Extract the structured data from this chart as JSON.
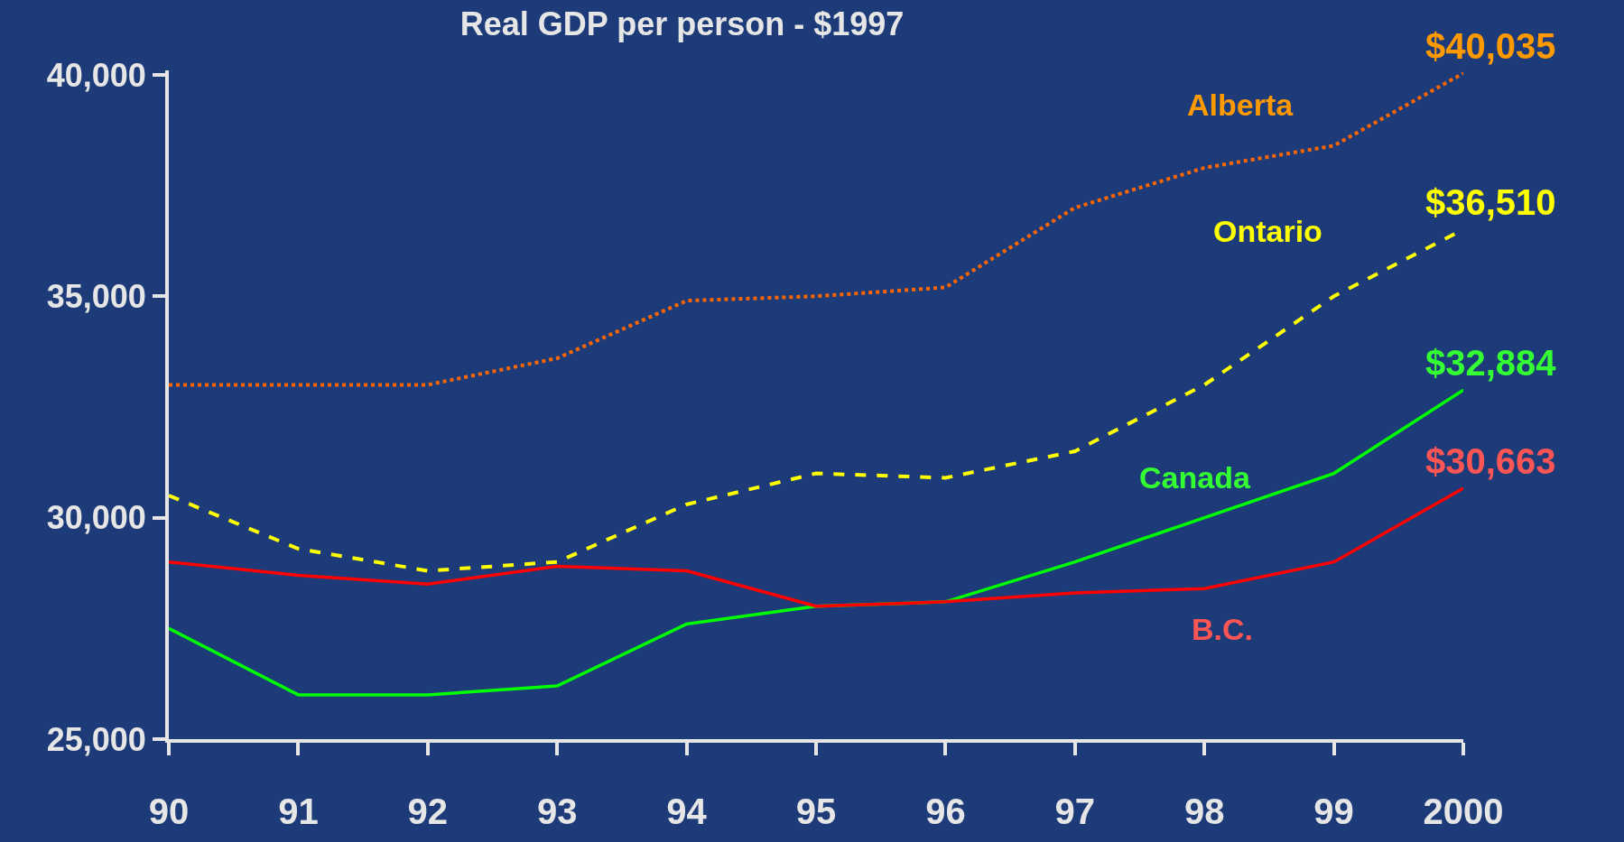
{
  "chart_data": {
    "type": "line",
    "title": "Real GDP per person - $1997",
    "x": [
      1990,
      1991,
      1992,
      1993,
      1994,
      1995,
      1996,
      1997,
      1998,
      1999,
      2000
    ],
    "xlim": [
      1990,
      2000
    ],
    "xticks": [
      {
        "value": 1990,
        "label": "90"
      },
      {
        "value": 1991,
        "label": "91"
      },
      {
        "value": 1992,
        "label": "92"
      },
      {
        "value": 1993,
        "label": "93"
      },
      {
        "value": 1994,
        "label": "94"
      },
      {
        "value": 1995,
        "label": "95"
      },
      {
        "value": 1996,
        "label": "96"
      },
      {
        "value": 1997,
        "label": "97"
      },
      {
        "value": 1998,
        "label": "98"
      },
      {
        "value": 1999,
        "label": "99"
      },
      2000
    ],
    "ylim": [
      25000,
      40100
    ],
    "yticks": [
      {
        "value": 25000,
        "label": "25,000"
      },
      {
        "value": 30000,
        "label": "30,000"
      },
      {
        "value": 35000,
        "label": "35,000"
      },
      {
        "value": 40000,
        "label": "40,000"
      }
    ],
    "grid": false,
    "legend": false,
    "marker": "none",
    "series": [
      {
        "name": "Alberta",
        "color": "#ff6600",
        "line_style": "dotted",
        "values": [
          33000,
          33000,
          33000,
          33600,
          34900,
          35000,
          35200,
          37000,
          37900,
          38400,
          40035
        ],
        "value_labels": [
          null,
          null,
          null,
          null,
          null,
          null,
          null,
          null,
          null,
          null,
          "$40,035"
        ]
      },
      {
        "name": "Ontario",
        "color": "#ffff00",
        "line_style": "dashed",
        "values": [
          30500,
          29300,
          28800,
          29000,
          30300,
          31000,
          30900,
          31500,
          33000,
          35000,
          36510
        ],
        "value_labels": [
          null,
          null,
          null,
          null,
          null,
          null,
          null,
          null,
          null,
          null,
          "$36,510"
        ]
      },
      {
        "name": "Canada",
        "color": "#00ff00",
        "line_style": "solid",
        "values": [
          27500,
          26000,
          26000,
          26200,
          27600,
          28000,
          28100,
          29000,
          30000,
          31000,
          32884
        ],
        "value_labels": [
          null,
          null,
          null,
          null,
          null,
          null,
          null,
          null,
          null,
          null,
          "$32,884"
        ]
      },
      {
        "name": "B.C.",
        "color": "#ff0000",
        "line_style": "solid",
        "values": [
          29000,
          28700,
          28500,
          28900,
          28800,
          28000,
          28100,
          28300,
          28400,
          29000,
          30663
        ],
        "value_labels": [
          null,
          null,
          null,
          null,
          null,
          null,
          null,
          null,
          null,
          null,
          "$30,663"
        ]
      }
    ]
  }
}
